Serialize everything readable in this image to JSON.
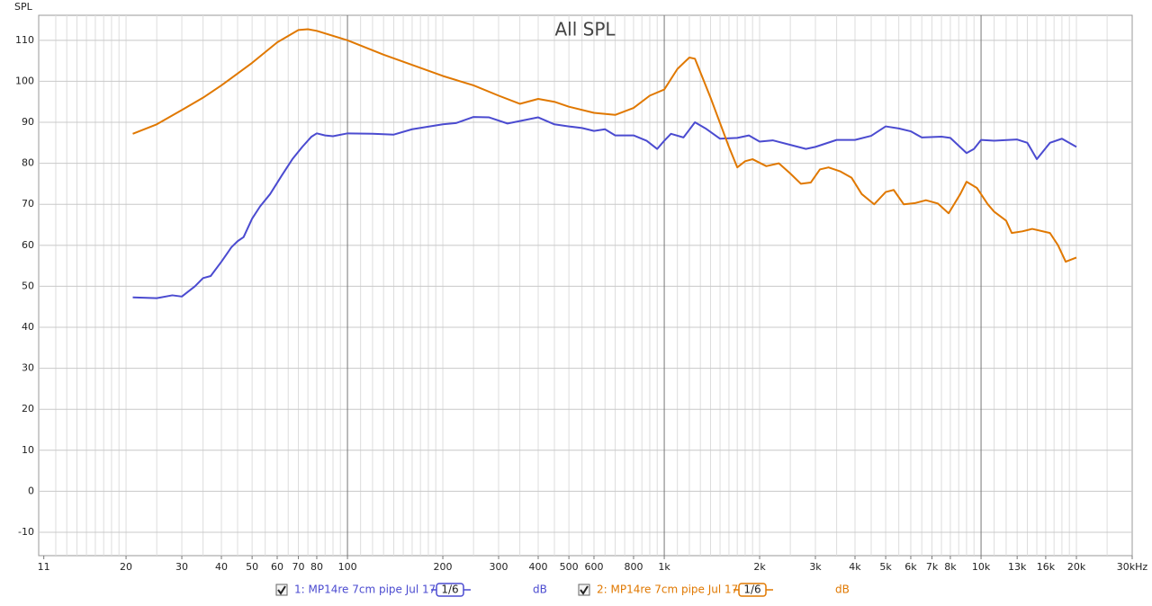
{
  "chart_data": {
    "type": "line",
    "title": "All SPL",
    "ylabel": "SPL",
    "xscale": "log",
    "grid": true,
    "xlim": [
      10.6,
      30000
    ],
    "ylim": [
      -15.7,
      116.1
    ],
    "xticks": [
      {
        "value": 11,
        "label": "11"
      },
      {
        "value": 20,
        "label": "20"
      },
      {
        "value": 30,
        "label": "30"
      },
      {
        "value": 40,
        "label": "40"
      },
      {
        "value": 50,
        "label": "50"
      },
      {
        "value": 60,
        "label": "60"
      },
      {
        "value": 70,
        "label": "70"
      },
      {
        "value": 80,
        "label": "80"
      },
      {
        "value": 100,
        "label": "100"
      },
      {
        "value": 200,
        "label": "200"
      },
      {
        "value": 300,
        "label": "300"
      },
      {
        "value": 400,
        "label": "400"
      },
      {
        "value": 500,
        "label": "500"
      },
      {
        "value": 600,
        "label": "600"
      },
      {
        "value": 800,
        "label": "800"
      },
      {
        "value": 1000,
        "label": "1k"
      },
      {
        "value": 2000,
        "label": "2k"
      },
      {
        "value": 3000,
        "label": "3k"
      },
      {
        "value": 4000,
        "label": "4k"
      },
      {
        "value": 5000,
        "label": "5k"
      },
      {
        "value": 6000,
        "label": "6k"
      },
      {
        "value": 7000,
        "label": "7k"
      },
      {
        "value": 8000,
        "label": "8k"
      },
      {
        "value": 10000,
        "label": "10k"
      },
      {
        "value": 13000,
        "label": "13k"
      },
      {
        "value": 16000,
        "label": "16k"
      },
      {
        "value": 20000,
        "label": "20k"
      },
      {
        "value": 30000,
        "label": "30kHz"
      }
    ],
    "xmajor": [
      100,
      1000,
      10000
    ],
    "xminor": [
      12,
      13,
      14,
      15,
      16,
      17,
      18,
      19,
      20,
      25,
      30,
      35,
      40,
      45,
      50,
      55,
      60,
      65,
      70,
      75,
      80,
      85,
      90,
      95,
      110,
      120,
      130,
      140,
      150,
      160,
      170,
      180,
      190,
      200,
      250,
      300,
      350,
      400,
      450,
      500,
      550,
      600,
      650,
      700,
      750,
      800,
      850,
      900,
      950,
      1100,
      1200,
      1300,
      1400,
      1500,
      1600,
      1700,
      1800,
      1900,
      2000,
      2500,
      3000,
      3500,
      4000,
      4500,
      5000,
      5500,
      6000,
      6500,
      7000,
      7500,
      8000,
      8500,
      9000,
      9500,
      11000,
      12000,
      13000,
      14000,
      15000,
      16000,
      17000,
      18000,
      19000,
      20000,
      25000
    ],
    "yticks": [
      -10,
      0,
      10,
      20,
      30,
      40,
      50,
      60,
      70,
      80,
      90,
      100,
      110
    ],
    "series": [
      {
        "name": "1: MP14re 7cm pipe Jul 17",
        "smoothing": "1/6",
        "unit": "dB",
        "color": "#4b4bd0",
        "x": [
          21,
          25,
          28,
          30,
          33,
          35,
          37,
          40,
          43,
          45,
          47,
          50,
          53,
          57,
          62,
          67,
          72,
          77,
          80,
          85,
          90,
          100,
          120,
          140,
          160,
          200,
          220,
          250,
          280,
          320,
          350,
          400,
          450,
          500,
          550,
          600,
          650,
          700,
          800,
          880,
          950,
          1000,
          1050,
          1150,
          1250,
          1350,
          1500,
          1700,
          1850,
          2000,
          2200,
          2500,
          2800,
          3000,
          3500,
          4000,
          4500,
          5000,
          5500,
          6000,
          6500,
          7500,
          8000,
          9000,
          9500,
          10000,
          11000,
          13000,
          14000,
          15000,
          16500,
          18000,
          20000
        ],
        "values": [
          47.3,
          47.1,
          47.8,
          47.5,
          50,
          52,
          52.5,
          56,
          59.5,
          61,
          62,
          66.5,
          69.5,
          72.5,
          77,
          81,
          84,
          86.5,
          87.3,
          86.8,
          86.6,
          87.3,
          87.2,
          87,
          88.3,
          89.5,
          89.8,
          91.3,
          91.2,
          89.7,
          90.3,
          91.2,
          89.5,
          89,
          88.6,
          87.9,
          88.3,
          86.8,
          86.8,
          85.5,
          83.5,
          85.5,
          87.2,
          86.3,
          90,
          88.5,
          86,
          86.2,
          86.8,
          85.3,
          85.6,
          84.5,
          83.5,
          84,
          85.7,
          85.7,
          86.7,
          89,
          88.5,
          87.8,
          86.3,
          86.5,
          86.2,
          82.5,
          83.5,
          85.7,
          85.5,
          85.8,
          85,
          81,
          85,
          86,
          84
        ]
      },
      {
        "name": "2: MP14re 7cm pipe Jul 17",
        "smoothing": "1/6",
        "unit": "dB",
        "color": "#e07800",
        "x": [
          21,
          25,
          30,
          35,
          40,
          50,
          60,
          70,
          75,
          80,
          100,
          130,
          160,
          200,
          250,
          300,
          350,
          400,
          450,
          500,
          600,
          700,
          800,
          900,
          1000,
          1100,
          1200,
          1250,
          1400,
          1600,
          1700,
          1800,
          1900,
          2100,
          2300,
          2500,
          2700,
          2900,
          3100,
          3300,
          3600,
          3900,
          4200,
          4600,
          5000,
          5300,
          5700,
          6200,
          6700,
          7300,
          7900,
          8600,
          9000,
          9700,
          10500,
          11000,
          12000,
          12500,
          13500,
          14500,
          16500,
          17500,
          18500,
          20000
        ],
        "values": [
          87.2,
          89.5,
          93,
          96,
          99,
          104.5,
          109.5,
          112.5,
          112.7,
          112.3,
          110,
          106.5,
          104,
          101.3,
          99,
          96.5,
          94.5,
          95.7,
          95,
          93.8,
          92.3,
          91.8,
          93.5,
          96.5,
          98,
          103,
          105.8,
          105.5,
          96,
          84,
          79,
          80.5,
          81,
          79.3,
          80,
          77.5,
          75,
          75.3,
          78.5,
          79,
          78,
          76.5,
          72.5,
          70,
          73,
          73.5,
          70,
          70.3,
          71,
          70.2,
          67.8,
          72.5,
          75.5,
          74,
          70,
          68.2,
          66,
          63,
          63.4,
          64,
          63,
          60,
          56,
          57
        ]
      }
    ]
  }
}
